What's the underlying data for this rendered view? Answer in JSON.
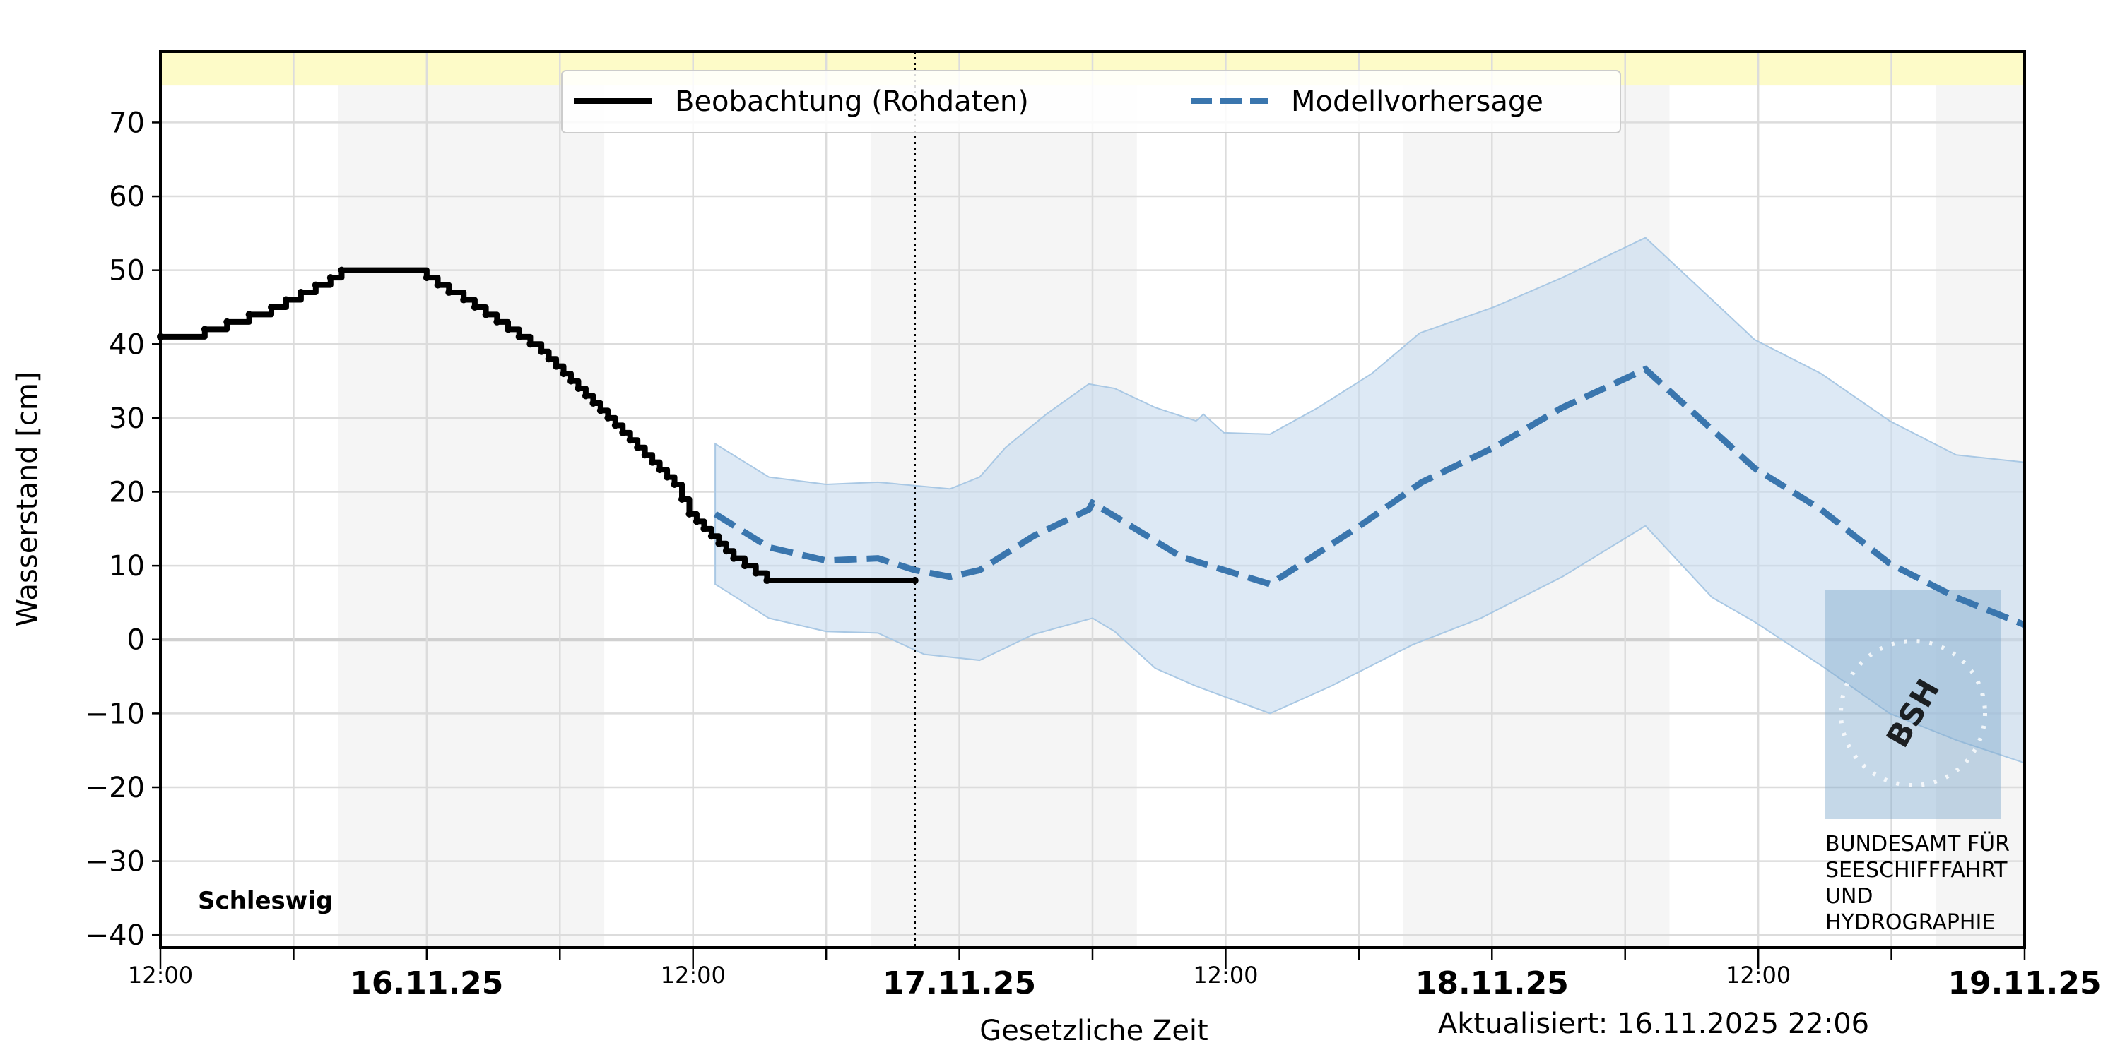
{
  "chart_data": {
    "type": "line",
    "station": "Schleswig",
    "ylabel": "Wasserstand [cm]",
    "xlabel": "Gesetzliche Zeit",
    "updated": "Aktualisiert: 16.11.2025 22:06",
    "ylim": [
      -41.7,
      79.6
    ],
    "xlim": [
      "2025-11-15T12:00",
      "2025-11-19T00:00"
    ],
    "yticks": [
      70,
      60,
      50,
      40,
      30,
      20,
      10,
      0,
      -10,
      -20,
      -30,
      -40
    ],
    "ytick_labels": [
      "70",
      "60",
      "50",
      "40",
      "30",
      "20",
      "10",
      "0",
      "−10",
      "−20",
      "−30",
      "−40"
    ],
    "xticks_major": [
      {
        "t": "2025-11-15T12:00",
        "label": "12:00",
        "bold": false
      },
      {
        "t": "2025-11-16T00:00",
        "label": "16.11.25",
        "bold": true
      },
      {
        "t": "2025-11-16T12:00",
        "label": "12:00",
        "bold": false
      },
      {
        "t": "2025-11-17T00:00",
        "label": "17.11.25",
        "bold": true
      },
      {
        "t": "2025-11-17T12:00",
        "label": "12:00",
        "bold": false
      },
      {
        "t": "2025-11-18T00:00",
        "label": "18.11.25",
        "bold": true
      },
      {
        "t": "2025-11-18T12:00",
        "label": "12:00",
        "bold": false
      },
      {
        "t": "2025-11-19T00:00",
        "label": "19.11.25",
        "bold": true
      }
    ],
    "grid": true,
    "night_bands": [
      [
        "2025-11-15T20:00",
        "2025-11-16T08:00"
      ],
      [
        "2025-11-16T20:00",
        "2025-11-17T08:00"
      ],
      [
        "2025-11-17T20:00",
        "2025-11-18T08:00"
      ],
      [
        "2025-11-18T20:00",
        "2025-11-19T00:00"
      ]
    ],
    "warning_band_above": 75,
    "now_line": "2025-11-16T22:00",
    "legend_placement": "top-center",
    "colors": {
      "observation": "#000000",
      "forecast": "#3a76ae",
      "band": "#c6dbee",
      "warning": "#fdfbc8",
      "night": "#f5f5f5"
    },
    "series": [
      {
        "name": "Beobachtung (Rohdaten)",
        "style": "step",
        "points": [
          [
            "2025-11-15T12:00",
            41
          ],
          [
            "2025-11-15T14:00",
            42
          ],
          [
            "2025-11-15T15:00",
            43
          ],
          [
            "2025-11-15T16:00",
            44
          ],
          [
            "2025-11-15T17:00",
            45
          ],
          [
            "2025-11-15T17:40",
            46
          ],
          [
            "2025-11-15T18:20",
            47
          ],
          [
            "2025-11-15T19:00",
            48
          ],
          [
            "2025-11-15T19:40",
            49
          ],
          [
            "2025-11-15T20:10",
            50
          ],
          [
            "2025-11-16T00:00",
            49
          ],
          [
            "2025-11-16T00:30",
            48
          ],
          [
            "2025-11-16T01:00",
            47
          ],
          [
            "2025-11-16T01:40",
            46
          ],
          [
            "2025-11-16T02:10",
            45
          ],
          [
            "2025-11-16T02:40",
            44
          ],
          [
            "2025-11-16T03:10",
            43
          ],
          [
            "2025-11-16T03:40",
            42
          ],
          [
            "2025-11-16T04:10",
            41
          ],
          [
            "2025-11-16T04:40",
            40
          ],
          [
            "2025-11-16T05:10",
            39
          ],
          [
            "2025-11-16T05:30",
            38
          ],
          [
            "2025-11-16T05:50",
            37
          ],
          [
            "2025-11-16T06:10",
            36
          ],
          [
            "2025-11-16T06:30",
            35
          ],
          [
            "2025-11-16T06:50",
            34
          ],
          [
            "2025-11-16T07:10",
            33
          ],
          [
            "2025-11-16T07:30",
            32
          ],
          [
            "2025-11-16T07:50",
            31
          ],
          [
            "2025-11-16T08:10",
            30
          ],
          [
            "2025-11-16T08:30",
            29
          ],
          [
            "2025-11-16T08:50",
            28
          ],
          [
            "2025-11-16T09:10",
            27
          ],
          [
            "2025-11-16T09:30",
            26
          ],
          [
            "2025-11-16T09:50",
            25
          ],
          [
            "2025-11-16T10:10",
            24
          ],
          [
            "2025-11-16T10:30",
            23
          ],
          [
            "2025-11-16T10:50",
            22
          ],
          [
            "2025-11-16T11:10",
            21
          ],
          [
            "2025-11-16T11:30",
            19
          ],
          [
            "2025-11-16T11:50",
            17
          ],
          [
            "2025-11-16T12:10",
            16
          ],
          [
            "2025-11-16T12:30",
            15
          ],
          [
            "2025-11-16T12:50",
            14
          ],
          [
            "2025-11-16T13:10",
            13
          ],
          [
            "2025-11-16T13:30",
            12
          ],
          [
            "2025-11-16T13:50",
            11
          ],
          [
            "2025-11-16T14:20",
            10
          ],
          [
            "2025-11-16T14:50",
            9
          ],
          [
            "2025-11-16T15:20",
            8
          ],
          [
            "2025-11-16T22:00",
            8
          ]
        ]
      },
      {
        "name": "Modellvorhersage",
        "style": "dashed",
        "points": [
          [
            "2025-11-16T13:00",
            17
          ],
          [
            "2025-11-16T15:25",
            12.5
          ],
          [
            "2025-11-16T18:00",
            10.7
          ],
          [
            "2025-11-16T20:20",
            11
          ],
          [
            "2025-11-16T22:00",
            9.4
          ],
          [
            "2025-11-16T23:35",
            8.5
          ],
          [
            "2025-11-17T00:55",
            9.4
          ],
          [
            "2025-11-17T03:20",
            14
          ],
          [
            "2025-11-17T05:50",
            17.6
          ],
          [
            "2025-11-17T06:00",
            18.5
          ],
          [
            "2025-11-17T07:00",
            16.7
          ],
          [
            "2025-11-17T10:00",
            11.2
          ],
          [
            "2025-11-17T14:00",
            7.5
          ],
          [
            "2025-11-17T18:00",
            15.3
          ],
          [
            "2025-11-17T20:50",
            21.3
          ],
          [
            "2025-11-18T00:05",
            26
          ],
          [
            "2025-11-18T03:10",
            31.4
          ],
          [
            "2025-11-18T06:55",
            36.6
          ],
          [
            "2025-11-18T11:50",
            23.2
          ],
          [
            "2025-11-18T14:50",
            17.6
          ],
          [
            "2025-11-18T17:55",
            10.3
          ],
          [
            "2025-11-18T20:55",
            5.7
          ],
          [
            "2025-11-19T00:00",
            2
          ]
        ]
      }
    ],
    "forecast_band": {
      "upper": [
        [
          "2025-11-16T13:00",
          26.5
        ],
        [
          "2025-11-16T15:25",
          22
        ],
        [
          "2025-11-16T18:00",
          21
        ],
        [
          "2025-11-16T20:20",
          21.3
        ],
        [
          "2025-11-16T23:35",
          20.4
        ],
        [
          "2025-11-17T00:55",
          22
        ],
        [
          "2025-11-17T02:05",
          26
        ],
        [
          "2025-11-17T03:55",
          30.5
        ],
        [
          "2025-11-17T05:50",
          34.6
        ],
        [
          "2025-11-17T07:00",
          34
        ],
        [
          "2025-11-17T08:50",
          31.4
        ],
        [
          "2025-11-17T10:40",
          29.6
        ],
        [
          "2025-11-17T11:00",
          30.5
        ],
        [
          "2025-11-17T11:55",
          28
        ],
        [
          "2025-11-17T14:00",
          27.8
        ],
        [
          "2025-11-17T16:10",
          31.4
        ],
        [
          "2025-11-17T18:35",
          36
        ],
        [
          "2025-11-17T20:45",
          41.5
        ],
        [
          "2025-11-18T00:05",
          45
        ],
        [
          "2025-11-18T03:10",
          49
        ],
        [
          "2025-11-18T06:55",
          54.4
        ],
        [
          "2025-11-18T09:55",
          46
        ],
        [
          "2025-11-18T11:50",
          40.6
        ],
        [
          "2025-11-18T14:50",
          36
        ],
        [
          "2025-11-18T17:55",
          29.6
        ],
        [
          "2025-11-18T20:55",
          25
        ],
        [
          "2025-11-19T00:00",
          24
        ]
      ],
      "lower": [
        [
          "2025-11-16T13:00",
          7.5
        ],
        [
          "2025-11-16T15:25",
          2.9
        ],
        [
          "2025-11-16T18:00",
          1.1
        ],
        [
          "2025-11-16T20:20",
          0.9
        ],
        [
          "2025-11-16T22:25",
          -2
        ],
        [
          "2025-11-17T00:55",
          -2.8
        ],
        [
          "2025-11-17T03:20",
          0.7
        ],
        [
          "2025-11-17T06:00",
          2.9
        ],
        [
          "2025-11-17T07:00",
          1.1
        ],
        [
          "2025-11-17T08:50",
          -3.9
        ],
        [
          "2025-11-17T10:40",
          -6.3
        ],
        [
          "2025-11-17T14:00",
          -10
        ],
        [
          "2025-11-17T16:45",
          -6.3
        ],
        [
          "2025-11-17T20:25",
          -0.7
        ],
        [
          "2025-11-17T23:30",
          2.9
        ],
        [
          "2025-11-18T03:10",
          8.5
        ],
        [
          "2025-11-18T06:55",
          15.4
        ],
        [
          "2025-11-18T09:55",
          5.7
        ],
        [
          "2025-11-18T11:50",
          2.4
        ],
        [
          "2025-11-18T14:50",
          -3.5
        ],
        [
          "2025-11-18T17:55",
          -10
        ],
        [
          "2025-11-18T20:55",
          -13.6
        ],
        [
          "2025-11-19T00:00",
          -16.7
        ]
      ]
    },
    "logo": {
      "text": [
        "BUNDESAMT FÜR",
        "SEESCHIFFFAHRT",
        "UND",
        "HYDROGRAPHIE"
      ],
      "mark": "BSH"
    }
  }
}
